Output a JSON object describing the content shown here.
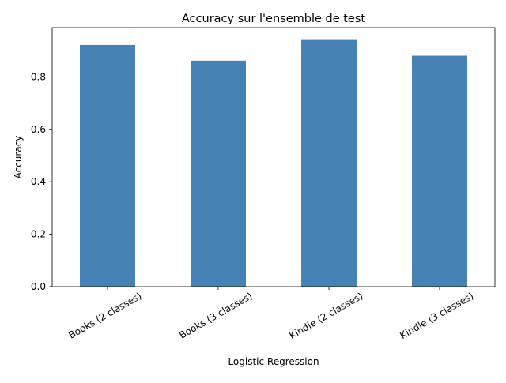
{
  "chart_data": {
    "type": "bar",
    "title": "Accuracy sur l'ensemble de test",
    "xlabel": "Logistic Regression",
    "ylabel": "Accuracy",
    "categories": [
      "Books (2 classes)",
      "Books (3 classes)",
      "Kindle (2 classes)",
      "Kindle (3 classes)"
    ],
    "values": [
      0.922,
      0.862,
      0.941,
      0.881
    ],
    "ylim": [
      0,
      0.988
    ],
    "yticks": [
      "0.0",
      "0.2",
      "0.4",
      "0.6",
      "0.8"
    ],
    "yticks_values": [
      0.0,
      0.2,
      0.4,
      0.6,
      0.8
    ],
    "bar_color": "#4682b4",
    "grid": false,
    "legend": "none"
  }
}
